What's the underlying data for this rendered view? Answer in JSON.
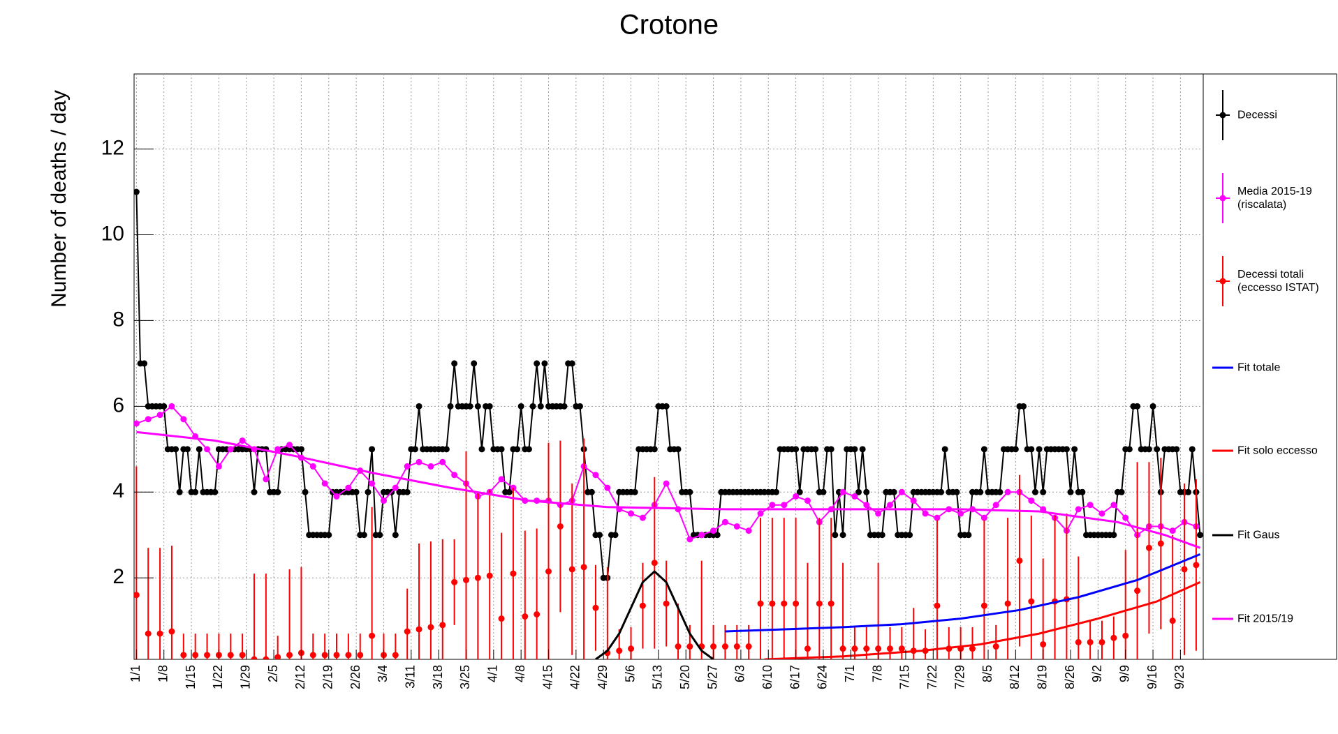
{
  "chart_data": {
    "type": "line",
    "title": "Crotone",
    "y_label": "Number of deaths / day",
    "xlim": [
      -0.6,
      271.8
    ],
    "ylim": [
      0.1,
      13.75
    ],
    "grid": true,
    "legend": "right",
    "xticks": [
      {
        "value": 0,
        "label": "1/1"
      },
      {
        "value": 7,
        "label": "1/8"
      },
      {
        "value": 14,
        "label": "1/15"
      },
      {
        "value": 21,
        "label": "1/22"
      },
      {
        "value": 28,
        "label": "1/29"
      },
      {
        "value": 35,
        "label": "2/5"
      },
      {
        "value": 42,
        "label": "2/12"
      },
      {
        "value": 49,
        "label": "2/19"
      },
      {
        "value": 56,
        "label": "2/26"
      },
      {
        "value": 63,
        "label": "3/4"
      },
      {
        "value": 70,
        "label": "3/11"
      },
      {
        "value": 77,
        "label": "3/18"
      },
      {
        "value": 84,
        "label": "3/25"
      },
      {
        "value": 91,
        "label": "4/1"
      },
      {
        "value": 98,
        "label": "4/8"
      },
      {
        "value": 105,
        "label": "4/15"
      },
      {
        "value": 112,
        "label": "4/22"
      },
      {
        "value": 119,
        "label": "4/29"
      },
      {
        "value": 126,
        "label": "5/6"
      },
      {
        "value": 133,
        "label": "5/13"
      },
      {
        "value": 140,
        "label": "5/20"
      },
      {
        "value": 147,
        "label": "5/27"
      },
      {
        "value": 154,
        "label": "6/3"
      },
      {
        "value": 161,
        "label": "6/10"
      },
      {
        "value": 168,
        "label": "6/17"
      },
      {
        "value": 175,
        "label": "6/24"
      },
      {
        "value": 182,
        "label": "7/1"
      },
      {
        "value": 189,
        "label": "7/8"
      },
      {
        "value": 196,
        "label": "7/15"
      },
      {
        "value": 203,
        "label": "7/22"
      },
      {
        "value": 210,
        "label": "7/29"
      },
      {
        "value": 217,
        "label": "8/5"
      },
      {
        "value": 224,
        "label": "8/12"
      },
      {
        "value": 231,
        "label": "8/19"
      },
      {
        "value": 238,
        "label": "8/26"
      },
      {
        "value": 245,
        "label": "9/2"
      },
      {
        "value": 252,
        "label": "9/9"
      },
      {
        "value": 259,
        "label": "9/16"
      },
      {
        "value": 266,
        "label": "9/23"
      }
    ],
    "yticks": [
      2,
      4,
      6,
      8,
      10,
      12
    ],
    "series": [
      {
        "name": "Decessi",
        "color": "#000000",
        "style": "points-line",
        "x": [
          0,
          1,
          2,
          3,
          4,
          5,
          6,
          7,
          8,
          9,
          10,
          11,
          12,
          13,
          14,
          15,
          16,
          17,
          18,
          19,
          20,
          21,
          22,
          23,
          24,
          25,
          26,
          27,
          28,
          29,
          30,
          31,
          32,
          33,
          34,
          35,
          36,
          37,
          38,
          39,
          40,
          41,
          42,
          43,
          44,
          45,
          46,
          47,
          48,
          49,
          50,
          51,
          52,
          53,
          54,
          55,
          56,
          57,
          58,
          59,
          60,
          61,
          62,
          63,
          64,
          65,
          66,
          67,
          68,
          69,
          70,
          71,
          72,
          73,
          74,
          75,
          76,
          77,
          78,
          79,
          80,
          81,
          82,
          83,
          84,
          85,
          86,
          87,
          88,
          89,
          90,
          91,
          92,
          93,
          94,
          95,
          96,
          97,
          98,
          99,
          100,
          101,
          102,
          103,
          104,
          105,
          106,
          107,
          108,
          109,
          110,
          111,
          112,
          113,
          114,
          115,
          116,
          117,
          118,
          119,
          120,
          121,
          122,
          123,
          124,
          125,
          126,
          127,
          128,
          129,
          130,
          131,
          132,
          133,
          134,
          135,
          136,
          137,
          138,
          139,
          140,
          141,
          142,
          143,
          144,
          145,
          146,
          147,
          148,
          149,
          150,
          151,
          152,
          153,
          154,
          155,
          156,
          157,
          158,
          159,
          160,
          161,
          162,
          163,
          164,
          165,
          166,
          167,
          168,
          169,
          170,
          171,
          172,
          173,
          174,
          175,
          176,
          177,
          178,
          179,
          180,
          181,
          182,
          183,
          184,
          185,
          186,
          187,
          188,
          189,
          190,
          191,
          192,
          193,
          194,
          195,
          196,
          197,
          198,
          199,
          200,
          201,
          202,
          203,
          204,
          205,
          206,
          207,
          208,
          209,
          210,
          211,
          212,
          213,
          214,
          215,
          216,
          217,
          218,
          219,
          220,
          221,
          222,
          223,
          224,
          225,
          226,
          227,
          228,
          229,
          230,
          231,
          232,
          233,
          234,
          235,
          236,
          237,
          238,
          239,
          240,
          241,
          242,
          243,
          244,
          245,
          246,
          247,
          248,
          249,
          250,
          251,
          252,
          253,
          254,
          255,
          256,
          257,
          258,
          259,
          260,
          261,
          262,
          263,
          264,
          265,
          266,
          267,
          268,
          269,
          270,
          271
        ],
        "values": [
          11,
          7,
          7,
          6,
          6,
          6,
          6,
          6,
          5,
          5,
          5,
          4,
          5,
          5,
          4,
          4,
          5,
          4,
          4,
          4,
          4,
          5,
          5,
          5,
          5,
          5,
          5,
          5,
          5,
          5,
          4,
          5,
          5,
          5,
          4,
          4,
          4,
          5,
          5,
          5,
          5,
          5,
          5,
          4,
          3,
          3,
          3,
          3,
          3,
          3,
          4,
          4,
          4,
          4,
          4,
          4,
          4,
          3,
          3,
          4,
          5,
          3,
          3,
          4,
          4,
          4,
          3,
          4,
          4,
          4,
          5,
          5,
          6,
          5,
          5,
          5,
          5,
          5,
          5,
          5,
          6,
          7,
          6,
          6,
          6,
          6,
          7,
          6,
          5,
          6,
          6,
          5,
          5,
          5,
          4,
          4,
          5,
          5,
          6,
          5,
          5,
          6,
          7,
          6,
          7,
          6,
          6,
          6,
          6,
          6,
          7,
          7,
          6,
          6,
          5,
          4,
          4,
          3,
          3,
          2,
          2,
          3,
          3,
          4,
          4,
          4,
          4,
          4,
          5,
          5,
          5,
          5,
          5,
          6,
          6,
          6,
          5,
          5,
          5,
          4,
          4,
          4,
          3,
          3,
          3,
          3,
          3,
          3,
          3,
          4,
          4,
          4,
          4,
          4,
          4,
          4,
          4,
          4,
          4,
          4,
          4,
          4,
          4,
          4,
          5,
          5,
          5,
          5,
          5,
          4,
          5,
          5,
          5,
          5,
          4,
          4,
          5,
          5,
          3,
          4,
          3,
          5,
          5,
          5,
          4,
          5,
          4,
          3,
          3,
          3,
          3,
          4,
          4,
          4,
          3,
          3,
          3,
          3,
          4,
          4,
          4,
          4,
          4,
          4,
          4,
          4,
          5,
          4,
          4,
          4,
          3,
          3,
          3,
          4,
          4,
          4,
          5,
          4,
          4,
          4,
          4,
          5,
          5,
          5,
          5,
          6,
          6,
          5,
          5,
          4,
          5,
          4,
          5,
          5,
          5,
          5,
          5,
          5,
          4,
          5,
          4,
          4,
          3,
          3,
          3,
          3,
          3,
          3,
          3,
          3,
          4,
          4,
          5,
          5,
          6,
          6,
          5,
          5,
          5,
          6,
          5,
          4,
          5,
          5,
          5,
          5,
          4,
          4,
          4,
          5,
          4,
          3
        ]
      },
      {
        "name": "Media 2015-19 (riscalata)",
        "color": "#ff00ff",
        "style": "points-line",
        "x": [
          0,
          3,
          6,
          9,
          12,
          15,
          18,
          21,
          24,
          27,
          30,
          33,
          36,
          39,
          42,
          45,
          48,
          51,
          54,
          57,
          60,
          63,
          66,
          69,
          72,
          75,
          78,
          81,
          84,
          87,
          90,
          93,
          96,
          99,
          102,
          105,
          108,
          111,
          114,
          117,
          120,
          123,
          126,
          129,
          132,
          135,
          138,
          141,
          144,
          147,
          150,
          153,
          156,
          159,
          162,
          165,
          168,
          171,
          174,
          177,
          180,
          183,
          186,
          189,
          192,
          195,
          198,
          201,
          204,
          207,
          210,
          213,
          216,
          219,
          222,
          225,
          228,
          231,
          234,
          237,
          240,
          243,
          246,
          249,
          252,
          255,
          258,
          261,
          264,
          267,
          270
        ],
        "values": [
          5.6,
          5.7,
          5.8,
          6.0,
          5.7,
          5.3,
          5.0,
          4.6,
          5.0,
          5.2,
          5.0,
          4.3,
          5.0,
          5.1,
          4.8,
          4.6,
          4.2,
          3.9,
          4.1,
          4.5,
          4.2,
          3.8,
          4.1,
          4.6,
          4.7,
          4.6,
          4.7,
          4.4,
          4.2,
          3.9,
          4.0,
          4.3,
          4.1,
          3.8,
          3.8,
          3.8,
          3.7,
          3.8,
          4.6,
          4.4,
          4.1,
          3.6,
          3.5,
          3.4,
          3.7,
          4.2,
          3.6,
          2.9,
          3.0,
          3.1,
          3.3,
          3.2,
          3.1,
          3.5,
          3.7,
          3.7,
          3.9,
          3.8,
          3.3,
          3.6,
          4.0,
          3.9,
          3.7,
          3.5,
          3.7,
          4.0,
          3.8,
          3.5,
          3.4,
          3.6,
          3.5,
          3.6,
          3.4,
          3.7,
          4.0,
          4.0,
          3.8,
          3.6,
          3.4,
          3.1,
          3.6,
          3.7,
          3.5,
          3.7,
          3.4,
          3.0,
          3.2,
          3.2,
          3.1,
          3.3,
          3.2
        ]
      },
      {
        "name": "Decessi totali (eccesso ISTAT)",
        "color": "#ff0000",
        "style": "points",
        "x": [
          0,
          3,
          6,
          9,
          12,
          15,
          18,
          21,
          24,
          27,
          30,
          33,
          36,
          39,
          42,
          45,
          48,
          51,
          54,
          57,
          60,
          63,
          66,
          69,
          72,
          75,
          78,
          81,
          84,
          87,
          90,
          93,
          96,
          99,
          102,
          105,
          108,
          111,
          114,
          117,
          120,
          123,
          126,
          129,
          132,
          135,
          138,
          141,
          144,
          147,
          150,
          153,
          156,
          159,
          162,
          165,
          168,
          171,
          174,
          177,
          180,
          183,
          186,
          189,
          192,
          195,
          198,
          201,
          204,
          207,
          210,
          213,
          216,
          219,
          222,
          225,
          228,
          231,
          234,
          237,
          240,
          243,
          246,
          249,
          252,
          255,
          258,
          261,
          264,
          267,
          270
        ],
        "values": [
          1.6,
          0.7,
          0.7,
          0.75,
          0.2,
          0.2,
          0.2,
          0.2,
          0.2,
          0.2,
          0.1,
          0.1,
          0.15,
          0.2,
          0.25,
          0.2,
          0.2,
          0.2,
          0.2,
          0.2,
          0.65,
          0.2,
          0.2,
          0.75,
          0.8,
          0.85,
          0.9,
          1.9,
          1.95,
          2.0,
          2.05,
          1.05,
          2.1,
          1.1,
          1.15,
          2.15,
          3.2,
          2.2,
          2.25,
          1.3,
          0.25,
          0.3,
          0.35,
          1.35,
          2.35,
          1.4,
          0.4,
          0.4,
          0.4,
          0.4,
          0.4,
          0.4,
          0.4,
          1.4,
          1.4,
          1.4,
          1.4,
          0.35,
          1.4,
          1.4,
          0.35,
          0.35,
          0.35,
          0.35,
          0.35,
          0.35,
          0.3,
          0.3,
          1.35,
          0.35,
          0.35,
          0.35,
          1.35,
          0.4,
          1.4,
          2.4,
          1.45,
          0.45,
          1.45,
          1.5,
          0.5,
          0.5,
          0.5,
          0.6,
          0.65,
          1.7,
          2.7,
          2.8,
          1.0,
          2.2,
          2.3
        ],
        "errors": [
          3,
          2,
          2,
          2,
          0.5,
          0.5,
          0.5,
          0.5,
          0.5,
          0.5,
          2,
          2,
          0.5,
          2,
          2,
          0.5,
          0.5,
          0.5,
          0.5,
          0.5,
          3,
          0.5,
          0.5,
          1,
          2,
          2,
          2,
          1,
          3,
          2,
          2,
          2,
          2,
          2,
          2,
          3,
          2,
          2,
          3,
          1,
          2,
          0.5,
          0.5,
          1,
          2,
          1,
          1,
          0.5,
          2,
          0.5,
          0.5,
          0.5,
          0.5,
          2,
          2,
          2,
          2,
          2,
          2,
          2,
          2,
          0.5,
          0.5,
          2,
          0.5,
          0.5,
          1,
          0.5,
          2,
          0.5,
          0.5,
          0.5,
          2,
          0.5,
          2,
          2,
          2,
          2,
          2,
          2,
          2,
          0.5,
          0.5,
          0.5,
          2,
          3,
          2,
          2,
          2,
          2,
          2
        ]
      },
      {
        "name": "Fit totale",
        "color": "#0000ff",
        "style": "line",
        "x": [
          150,
          165,
          180,
          195,
          210,
          225,
          240,
          255,
          271
        ],
        "values": [
          0.75,
          0.8,
          0.85,
          0.92,
          1.05,
          1.25,
          1.55,
          1.95,
          2.55
        ]
      },
      {
        "name": "Fit solo eccesso",
        "color": "#ff0000",
        "style": "line",
        "x": [
          160,
          180,
          200,
          215,
          230,
          245,
          260,
          271
        ],
        "values": [
          0.1,
          0.17,
          0.3,
          0.45,
          0.7,
          1.05,
          1.45,
          1.9
        ]
      },
      {
        "name": "Fit Gaus",
        "color": "#000000",
        "style": "line",
        "x": [
          117,
          120,
          123,
          126,
          129,
          132,
          135,
          138,
          141,
          144,
          147
        ],
        "values": [
          0.1,
          0.3,
          0.7,
          1.3,
          1.9,
          2.15,
          1.9,
          1.3,
          0.7,
          0.3,
          0.1
        ]
      },
      {
        "name": "Fit 2015/19",
        "color": "#ff00ff",
        "style": "line",
        "x": [
          0,
          20,
          40,
          60,
          80,
          100,
          120,
          150,
          180,
          210,
          230,
          250,
          262,
          271
        ],
        "values": [
          5.4,
          5.2,
          4.85,
          4.45,
          4.1,
          3.8,
          3.65,
          3.6,
          3.6,
          3.6,
          3.55,
          3.3,
          3.0,
          2.7
        ]
      }
    ]
  }
}
